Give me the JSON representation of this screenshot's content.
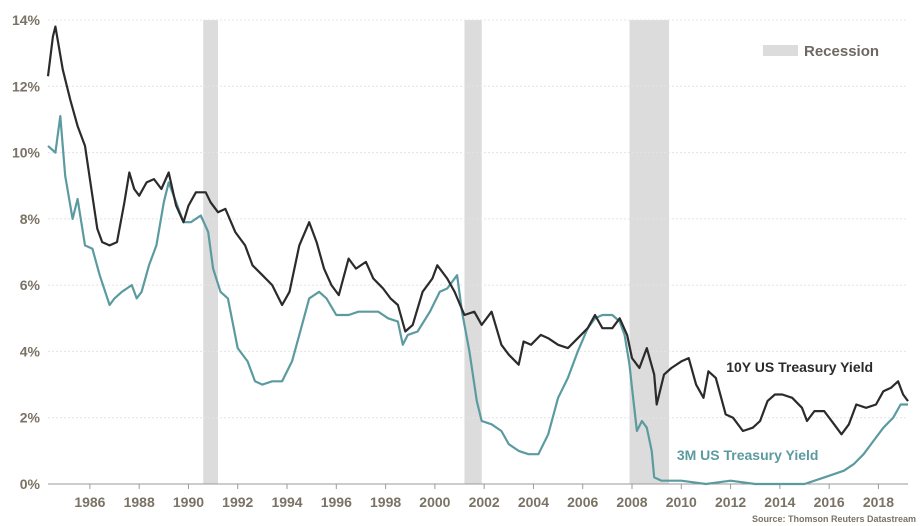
{
  "chart_data": {
    "type": "line",
    "title": "",
    "xlabel": "",
    "ylabel": "",
    "xlim": [
      1984.3,
      2019.2
    ],
    "ylim": [
      0,
      14
    ],
    "y_ticks": [
      0,
      2,
      4,
      6,
      8,
      10,
      12,
      14
    ],
    "y_tick_labels": [
      "0%",
      "2%",
      "4%",
      "6%",
      "8%",
      "10%",
      "12%",
      "14%"
    ],
    "x_ticks": [
      1986,
      1988,
      1990,
      1992,
      1994,
      1996,
      1998,
      2000,
      2002,
      2004,
      2006,
      2008,
      2010,
      2012,
      2014,
      2016,
      2018
    ],
    "x_tick_labels": [
      "1986",
      "1988",
      "1990",
      "1992",
      "1994",
      "1996",
      "1998",
      "2000",
      "2002",
      "2004",
      "2006",
      "2008",
      "2010",
      "2012",
      "2014",
      "2016",
      "2018"
    ],
    "grid": true,
    "legend": {
      "position": "top-right",
      "label": "Recession",
      "color": "#dcdcdc"
    },
    "recessions": [
      [
        1990.6,
        1991.2
      ],
      [
        2001.2,
        2001.9
      ],
      [
        2007.9,
        2009.5
      ]
    ],
    "series": [
      {
        "name": "10Y US Treasury Yield",
        "color": "#2b2b2b",
        "x": [
          1984.3,
          1984.5,
          1984.6,
          1984.9,
          1985.2,
          1985.5,
          1985.8,
          1986.0,
          1986.3,
          1986.5,
          1986.8,
          1987.1,
          1987.4,
          1987.6,
          1987.8,
          1988.0,
          1988.3,
          1988.6,
          1988.9,
          1989.2,
          1989.5,
          1989.8,
          1990.0,
          1990.3,
          1990.7,
          1990.9,
          1991.2,
          1991.5,
          1991.9,
          1992.3,
          1992.6,
          1993.0,
          1993.4,
          1993.8,
          1994.1,
          1994.5,
          1994.9,
          1995.2,
          1995.5,
          1995.8,
          1996.1,
          1996.5,
          1996.8,
          1997.2,
          1997.5,
          1997.9,
          1998.2,
          1998.5,
          1998.8,
          1999.1,
          1999.5,
          1999.9,
          2000.1,
          2000.5,
          2000.8,
          2001.2,
          2001.6,
          2001.9,
          2002.3,
          2002.7,
          2003.0,
          2003.4,
          2003.6,
          2003.9,
          2004.3,
          2004.6,
          2005.0,
          2005.4,
          2005.8,
          2006.2,
          2006.5,
          2006.8,
          2007.2,
          2007.5,
          2007.8,
          2008.0,
          2008.3,
          2008.6,
          2008.9,
          2009.0,
          2009.3,
          2009.6,
          2010.0,
          2010.3,
          2010.6,
          2010.9,
          2011.1,
          2011.4,
          2011.8,
          2012.1,
          2012.5,
          2012.9,
          2013.2,
          2013.5,
          2013.8,
          2014.1,
          2014.5,
          2014.9,
          2015.1,
          2015.4,
          2015.8,
          2016.2,
          2016.5,
          2016.8,
          2017.1,
          2017.5,
          2017.9,
          2018.2,
          2018.5,
          2018.8,
          2019.0,
          2019.2
        ],
        "values": [
          12.3,
          13.5,
          13.8,
          12.5,
          11.6,
          10.8,
          10.2,
          9.2,
          7.7,
          7.3,
          7.2,
          7.3,
          8.5,
          9.4,
          8.9,
          8.7,
          9.1,
          9.2,
          8.9,
          9.4,
          8.4,
          7.9,
          8.4,
          8.8,
          8.8,
          8.5,
          8.2,
          8.3,
          7.6,
          7.2,
          6.6,
          6.3,
          6.0,
          5.4,
          5.8,
          7.2,
          7.9,
          7.3,
          6.5,
          6.0,
          5.7,
          6.8,
          6.5,
          6.7,
          6.2,
          5.9,
          5.6,
          5.4,
          4.6,
          4.8,
          5.8,
          6.2,
          6.6,
          6.2,
          5.8,
          5.1,
          5.2,
          4.8,
          5.2,
          4.2,
          3.9,
          3.6,
          4.3,
          4.2,
          4.5,
          4.4,
          4.2,
          4.1,
          4.4,
          4.7,
          5.1,
          4.7,
          4.7,
          5.0,
          4.5,
          3.8,
          3.5,
          4.1,
          3.3,
          2.4,
          3.3,
          3.5,
          3.7,
          3.8,
          3.0,
          2.6,
          3.4,
          3.2,
          2.1,
          2.0,
          1.6,
          1.7,
          1.9,
          2.5,
          2.7,
          2.7,
          2.6,
          2.3,
          1.9,
          2.2,
          2.2,
          1.8,
          1.5,
          1.8,
          2.4,
          2.3,
          2.4,
          2.8,
          2.9,
          3.1,
          2.7,
          2.5
        ],
        "label_year": 2010.2,
        "label_value": 3.5
      },
      {
        "name": "3M US Treasury Yield",
        "color": "#5b9ba0",
        "x": [
          1984.3,
          1984.6,
          1984.8,
          1985.0,
          1985.3,
          1985.5,
          1985.8,
          1986.1,
          1986.4,
          1986.8,
          1987.0,
          1987.3,
          1987.7,
          1987.9,
          1988.1,
          1988.4,
          1988.7,
          1989.0,
          1989.2,
          1989.5,
          1989.8,
          1990.1,
          1990.5,
          1990.8,
          1991.0,
          1991.3,
          1991.6,
          1992.0,
          1992.4,
          1992.7,
          1993.0,
          1993.4,
          1993.8,
          1994.2,
          1994.5,
          1994.9,
          1995.3,
          1995.6,
          1996.0,
          1996.5,
          1996.9,
          1997.3,
          1997.7,
          1998.1,
          1998.5,
          1998.7,
          1998.9,
          1999.3,
          1999.8,
          2000.2,
          2000.5,
          2000.9,
          2001.1,
          2001.4,
          2001.7,
          2001.9,
          2002.3,
          2002.7,
          2003.0,
          2003.4,
          2003.8,
          2004.2,
          2004.6,
          2005.0,
          2005.4,
          2005.8,
          2006.2,
          2006.5,
          2006.8,
          2007.2,
          2007.5,
          2007.7,
          2007.9,
          2008.0,
          2008.2,
          2008.4,
          2008.6,
          2008.8,
          2008.9,
          2009.2,
          2010.0,
          2011.0,
          2012.0,
          2013.0,
          2014.0,
          2015.0,
          2015.8,
          2016.2,
          2016.6,
          2017.0,
          2017.4,
          2017.8,
          2018.2,
          2018.6,
          2018.9,
          2019.2
        ],
        "values": [
          10.2,
          10.0,
          11.1,
          9.3,
          8.0,
          8.6,
          7.2,
          7.1,
          6.3,
          5.4,
          5.6,
          5.8,
          6.0,
          5.6,
          5.8,
          6.6,
          7.2,
          8.5,
          9.1,
          8.5,
          7.9,
          7.9,
          8.1,
          7.6,
          6.5,
          5.8,
          5.6,
          4.1,
          3.7,
          3.1,
          3.0,
          3.1,
          3.1,
          3.7,
          4.5,
          5.6,
          5.8,
          5.6,
          5.1,
          5.1,
          5.2,
          5.2,
          5.2,
          5.0,
          4.9,
          4.2,
          4.5,
          4.6,
          5.2,
          5.8,
          5.9,
          6.3,
          5.2,
          4.0,
          2.5,
          1.9,
          1.8,
          1.6,
          1.2,
          1.0,
          0.9,
          0.9,
          1.5,
          2.6,
          3.2,
          4.0,
          4.7,
          5.0,
          5.1,
          5.1,
          4.9,
          4.5,
          3.6,
          2.9,
          1.6,
          1.9,
          1.7,
          1.0,
          0.2,
          0.1,
          0.1,
          0.0,
          0.1,
          0.0,
          0.0,
          0.0,
          0.2,
          0.3,
          0.4,
          0.6,
          0.9,
          1.3,
          1.7,
          2.0,
          2.4,
          2.4
        ],
        "label_year": 2009.9,
        "label_value": 0.0
      }
    ],
    "source": "Source: Thomson Reuters Datastream"
  }
}
